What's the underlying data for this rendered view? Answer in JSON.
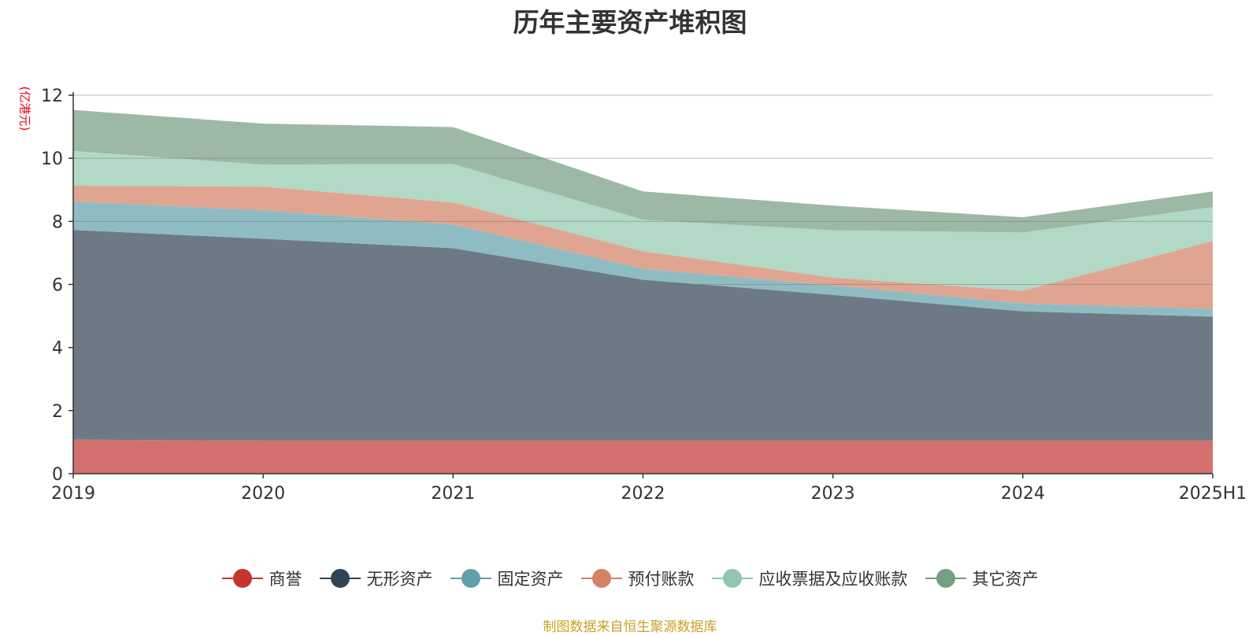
{
  "chart_data": {
    "type": "area",
    "stacked": true,
    "title": "历年主要资产堆积图",
    "ylabel": "(亿港元)",
    "xlabel": "",
    "ylim": [
      0,
      12
    ],
    "yticks": [
      0,
      2,
      4,
      6,
      8,
      10,
      12
    ],
    "grid": true,
    "categories": [
      "2019",
      "2020",
      "2021",
      "2022",
      "2023",
      "2024",
      "2025H1"
    ],
    "series": [
      {
        "name": "商誉",
        "color": "#c23531",
        "fill": "#d4706e",
        "values": [
          1.08,
          1.05,
          1.05,
          1.05,
          1.05,
          1.05,
          1.05
        ]
      },
      {
        "name": "无形资产",
        "color": "#2f4554",
        "fill": "#6d7a85",
        "values": [
          6.65,
          6.4,
          6.1,
          5.1,
          4.62,
          4.1,
          3.93
        ]
      },
      {
        "name": "固定资产",
        "color": "#61a0a8",
        "fill": "#8fbcc2",
        "values": [
          0.9,
          0.9,
          0.75,
          0.35,
          0.3,
          0.25,
          0.25
        ]
      },
      {
        "name": "预付账款",
        "color": "#d48265",
        "fill": "#e0a590",
        "values": [
          0.5,
          0.75,
          0.7,
          0.55,
          0.25,
          0.4,
          2.15
        ]
      },
      {
        "name": "应收票据及应收账款",
        "color": "#91c7ae",
        "fill": "#b2d8c6",
        "values": [
          1.1,
          0.7,
          1.22,
          1.0,
          1.5,
          1.85,
          1.07
        ]
      },
      {
        "name": "其它资产",
        "color": "#749f83",
        "fill": "#9eb8a6",
        "values": [
          1.3,
          1.3,
          1.17,
          0.9,
          0.78,
          0.48,
          0.5
        ]
      }
    ]
  },
  "source_text": "制图数据来自恒生聚源数据库"
}
